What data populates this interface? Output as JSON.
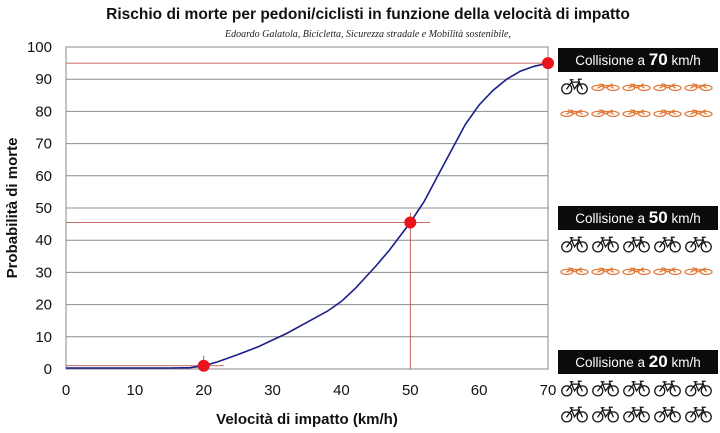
{
  "chart_data": {
    "type": "line",
    "title": "Rischio di morte per pedoni/ciclisti in funzione della velocità di impatto",
    "subtitle": "Edoardo Galatola, Bicicletta, Sicurezza stradale e Mobilità sostenibile,",
    "xlabel": "Velocità di impatto (km/h)",
    "ylabel": "Probabilità di morte",
    "xlim": [
      0,
      70
    ],
    "ylim": [
      0,
      100
    ],
    "x_ticks": [
      "0",
      "10",
      "20",
      "30",
      "40",
      "50",
      "60",
      "70"
    ],
    "y_ticks": [
      "0",
      "10",
      "20",
      "30",
      "40",
      "50",
      "60",
      "70",
      "80",
      "90",
      "100"
    ],
    "grid": "horizontal",
    "series": [
      {
        "x": [
          0,
          10,
          15,
          18,
          20,
          22,
          25,
          28,
          30,
          32,
          35,
          38,
          40,
          42,
          45,
          47,
          50,
          52,
          54,
          56,
          58,
          60,
          62,
          64,
          66,
          68,
          70
        ],
        "y": [
          0.3,
          0.3,
          0.3,
          0.4,
          1,
          2.2,
          4.5,
          7,
          9,
          11,
          14.5,
          18,
          21,
          25,
          32,
          37,
          45.5,
          52,
          60,
          68,
          76,
          82,
          86.5,
          90,
          92.5,
          94,
          95
        ],
        "color": "#1b1f8a"
      }
    ],
    "highlighted_points": [
      {
        "x": 20,
        "y": 1
      },
      {
        "x": 50,
        "y": 45.5
      },
      {
        "x": 70,
        "y": 95
      }
    ],
    "point_color": "#e8141c",
    "guide_color": "#b23a3a",
    "colors": {
      "bike_survivor": "#111111",
      "bike_casualty": "#e07a3a",
      "panel_header": "#0b0b0b"
    }
  },
  "scenarios": [
    {
      "prefix": "Collisione a",
      "speed": "70",
      "unit": "km/h",
      "survivors": 1,
      "casualties": 9,
      "survivor_icon": "bicycle-icon",
      "casualty_icon": "fallen-bicycle-icon"
    },
    {
      "prefix": "Collisione a",
      "speed": "50",
      "unit": "km/h",
      "survivors": 5,
      "casualties": 5,
      "survivor_icon": "bicycle-icon",
      "casualty_icon": "fallen-bicycle-icon"
    },
    {
      "prefix": "Collisione a",
      "speed": "20",
      "unit": "km/h",
      "survivors": 10,
      "casualties": 0,
      "survivor_icon": "bicycle-icon",
      "casualty_icon": "fallen-bicycle-icon"
    }
  ]
}
